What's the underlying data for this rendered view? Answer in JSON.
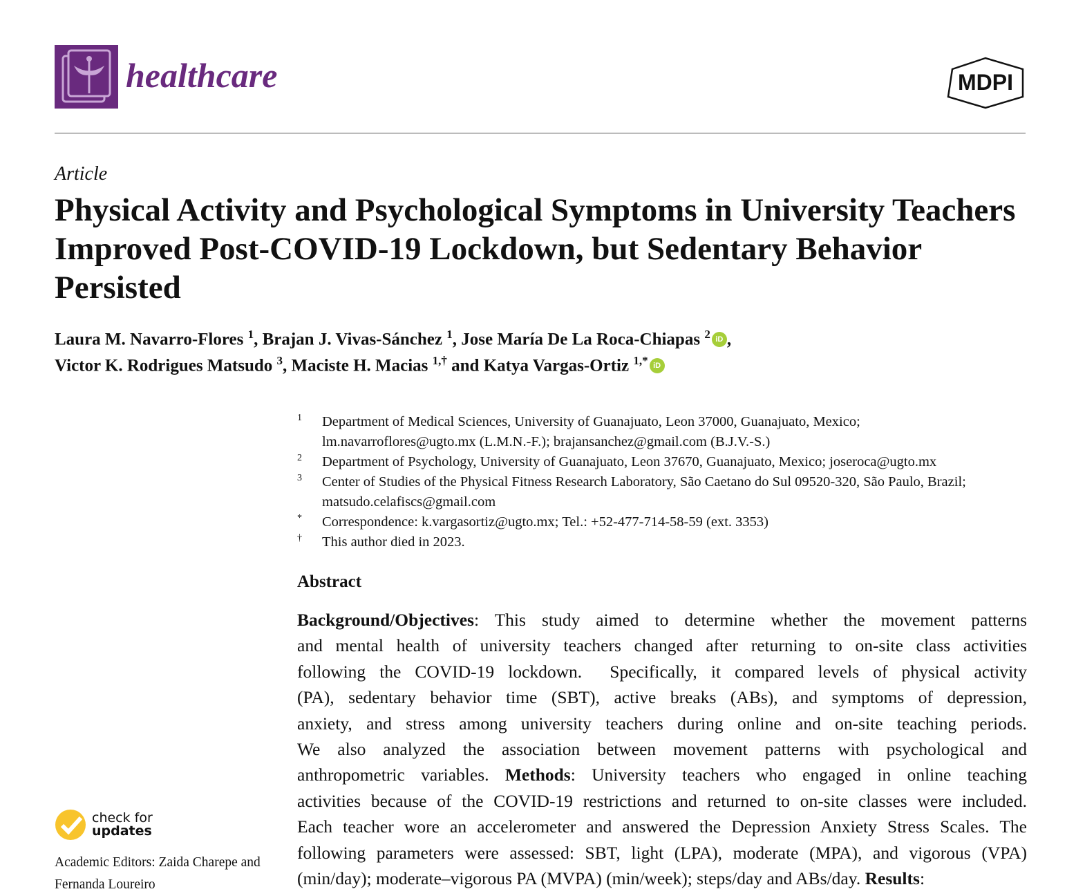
{
  "header": {
    "journal": "healthcare",
    "publisher": "MDPI",
    "brand_color": "#692a7e"
  },
  "article_type": "Article",
  "title": "Physical Activity and Psychological Symptoms in University Teachers Improved Post-COVID-19 Lockdown, but Sedentary Behavior Persisted",
  "authors": {
    "line1": [
      {
        "name": "Laura M. Navarro-Flores",
        "sup": "1"
      },
      {
        "name": "Brajan J. Vivas-Sánchez",
        "sup": "1"
      },
      {
        "name": "Jose María De La Roca-Chiapas",
        "sup": "2",
        "orcid": true
      }
    ],
    "line2": [
      {
        "name": "Victor K. Rodrigues Matsudo",
        "sup": "3"
      },
      {
        "name": "Maciste H. Macias",
        "sup": "1,†"
      },
      {
        "name": "Katya Vargas-Ortiz",
        "sup": "1,*",
        "orcid": true
      }
    ],
    "conj": "and"
  },
  "affiliations": [
    {
      "mark": "1",
      "lines": [
        "Department of Medical Sciences, University of Guanajuato, Leon 37000, Guanajuato, Mexico;",
        "lm.navarroflores@ugto.mx (L.M.N.-F.); brajansanchez@gmail.com (B.J.V.-S.)"
      ]
    },
    {
      "mark": "2",
      "lines": [
        "Department of Psychology, University of Guanajuato, Leon 37670, Guanajuato, Mexico; joseroca@ugto.mx"
      ]
    },
    {
      "mark": "3",
      "lines": [
        "Center of Studies of the Physical Fitness Research Laboratory, São Caetano do Sul 09520-320, São Paulo, Brazil;",
        "matsudo.celafiscs@gmail.com"
      ]
    },
    {
      "mark": "*",
      "lines": [
        "Correspondence: k.vargasortiz@ugto.mx; Tel.: +52-477-714-58-59 (ext. 3353)"
      ]
    },
    {
      "mark": "†",
      "lines": [
        "This author died in 2023."
      ]
    }
  ],
  "abstract": {
    "heading": "Abstract",
    "lines": [
      [
        {
          "t": "Background/Objectives",
          "b": true
        },
        {
          "t": ": This study aimed to determine whether the movement patterns"
        }
      ],
      [
        {
          "t": "and mental health of university teachers changed after returning to on-site class activities"
        }
      ],
      [
        {
          "t": "following the COVID-19 lockdown.  Specifically, it compared levels of physical activity"
        }
      ],
      [
        {
          "t": "(PA), sedentary behavior time (SBT), active breaks (ABs), and symptoms of depression,"
        }
      ],
      [
        {
          "t": "anxiety, and stress among university teachers during online and on-site teaching periods."
        }
      ],
      [
        {
          "t": "We also analyzed the association between movement patterns with psychological and"
        }
      ],
      [
        {
          "t": "anthropometric variables. "
        },
        {
          "t": "Methods",
          "b": true
        },
        {
          "t": ": University teachers who engaged in online teaching"
        }
      ],
      [
        {
          "t": "activities because of the COVID-19 restrictions and returned to on-site classes were included."
        }
      ],
      [
        {
          "t": "Each teacher wore an accelerometer and answered the Depression Anxiety Stress Scales. The"
        }
      ],
      [
        {
          "t": "following parameters were assessed: SBT, light (LPA), moderate (MPA), and vigorous (VPA)"
        }
      ],
      [
        {
          "t": "(min/day); moderate–vigorous PA (MVPA) (min/week); steps/day and ABs/day. "
        },
        {
          "t": "Results",
          "b": true
        },
        {
          "t": ":"
        }
      ]
    ]
  },
  "check_updates": {
    "line1": "check for",
    "line2": "updates"
  },
  "editors": "Academic Editors: Zaida Charepe and Fernanda Loureiro"
}
